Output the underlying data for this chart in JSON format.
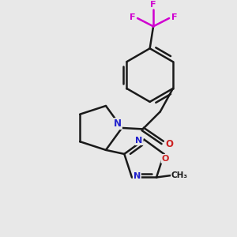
{
  "bg_color": "#e8e8e8",
  "bond_color": "#1a1a1a",
  "N_color": "#2121cc",
  "O_color": "#cc2020",
  "F_color": "#d000d0",
  "lw": 1.8,
  "lw_thin": 1.4,
  "figsize": [
    3.0,
    3.0
  ],
  "dpi": 100,
  "xlim": [
    0.0,
    1.0
  ],
  "ylim": [
    0.0,
    1.0
  ]
}
